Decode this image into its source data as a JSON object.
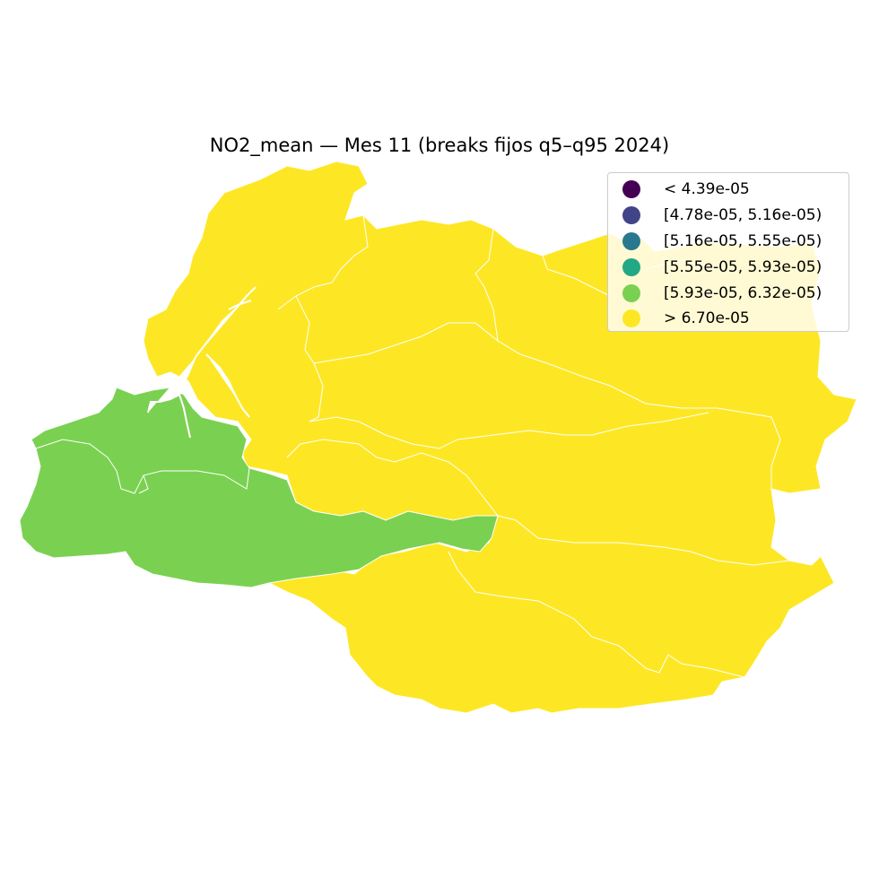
{
  "title": "NO2_mean — Mes 11 (breaks fijos q5–q95 2024)",
  "legend": {
    "items": [
      {
        "label": "< 4.39e-05",
        "color": "#440154"
      },
      {
        "label": "[4.78e-05, 5.16e-05)",
        "color": "#414487"
      },
      {
        "label": "[5.16e-05, 5.55e-05)",
        "color": "#2a788e"
      },
      {
        "label": "[5.55e-05, 5.93e-05)",
        "color": "#22a884"
      },
      {
        "label": "[5.93e-05, 6.32e-05)",
        "color": "#7ad151"
      },
      {
        "label": "> 6.70e-05",
        "color": "#fde725"
      }
    ]
  },
  "colors": {
    "high": "#fde725",
    "mid_high": "#7ad151",
    "border": "#ffffff",
    "water": "#ffffff"
  }
}
